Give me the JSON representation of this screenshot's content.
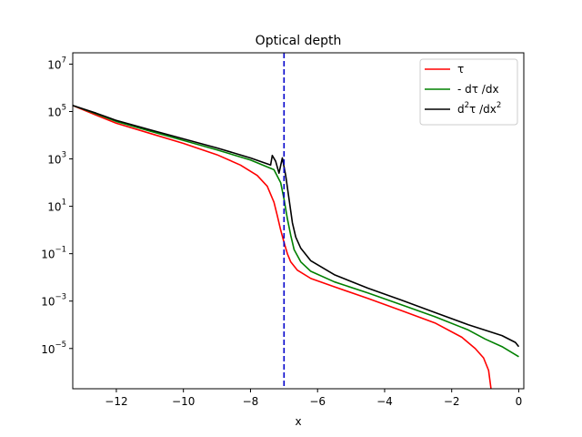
{
  "chart_data": {
    "type": "line",
    "title": "Optical depth",
    "xlabel": "x",
    "ylabel": "",
    "yscale": "log",
    "xlim": [
      -13.3,
      0.15
    ],
    "ylim": [
      2e-07,
      30000000.0
    ],
    "xticks": [
      -12,
      -10,
      -8,
      -6,
      -4,
      -2,
      0
    ],
    "xtick_labels": [
      "−12",
      "−10",
      "−8",
      "−6",
      "−4",
      "−2",
      "0"
    ],
    "yticks": [
      {
        "value": 10000000.0,
        "base": "10",
        "exp": "7"
      },
      {
        "value": 100000.0,
        "base": "10",
        "exp": "5"
      },
      {
        "value": 1000.0,
        "base": "10",
        "exp": "3"
      },
      {
        "value": 10.0,
        "base": "10",
        "exp": "1"
      },
      {
        "value": 0.1,
        "base": "10",
        "exp": "−1"
      },
      {
        "value": 0.001,
        "base": "10",
        "exp": "−3"
      },
      {
        "value": 1e-05,
        "base": "10",
        "exp": "−5"
      }
    ],
    "grid": false,
    "legend_position": "top-right",
    "vline": {
      "x": -7.0,
      "color": "#0000cc",
      "style": "dashed"
    },
    "series": [
      {
        "name": "τ",
        "legend_parts": [
          {
            "text": "τ"
          }
        ],
        "color": "#ff0000",
        "points": [
          [
            -13.3,
            180000.0
          ],
          [
            -12.6,
            70000.0
          ],
          [
            -12,
            32000.0
          ],
          [
            -11,
            12000.0
          ],
          [
            -10,
            4500.0
          ],
          [
            -9,
            1500.0
          ],
          [
            -8.3,
            550.0
          ],
          [
            -7.8,
            200.0
          ],
          [
            -7.5,
            70
          ],
          [
            -7.3,
            15
          ],
          [
            -7.2,
            4
          ],
          [
            -7.1,
            1
          ],
          [
            -7.0,
            0.3
          ],
          [
            -6.9,
            0.1
          ],
          [
            -6.8,
            0.045
          ],
          [
            -6.6,
            0.02
          ],
          [
            -6.2,
            0.009
          ],
          [
            -5.5,
            0.004
          ],
          [
            -4.5,
            0.0013
          ],
          [
            -3.5,
            0.0004
          ],
          [
            -2.5,
            0.00012
          ],
          [
            -1.7,
            3e-05
          ],
          [
            -1.3,
            1e-05
          ],
          [
            -1.05,
            4e-06
          ],
          [
            -0.9,
            1.2e-06
          ],
          [
            -0.8,
            1e-07
          ]
        ]
      },
      {
        "name": "- dτ /dx",
        "legend_parts": [
          {
            "text": "- dτ /dx"
          }
        ],
        "color": "#008000",
        "points": [
          [
            -13.3,
            180000.0
          ],
          [
            -12.6,
            80000.0
          ],
          [
            -12,
            38000.0
          ],
          [
            -11,
            15000.0
          ],
          [
            -10,
            6000.0
          ],
          [
            -9,
            2400.0
          ],
          [
            -8,
            900.0
          ],
          [
            -7.3,
            350.0
          ],
          [
            -7.1,
            100.0
          ],
          [
            -7.0,
            20
          ],
          [
            -6.9,
            3
          ],
          [
            -6.8,
            0.6
          ],
          [
            -6.7,
            0.15
          ],
          [
            -6.5,
            0.045
          ],
          [
            -6.2,
            0.018
          ],
          [
            -5.5,
            0.0065
          ],
          [
            -4.5,
            0.0022
          ],
          [
            -3.5,
            0.0007
          ],
          [
            -2.5,
            0.00022
          ],
          [
            -1.5,
            6e-05
          ],
          [
            -1,
            2.5e-05
          ],
          [
            -0.5,
            1.2e-05
          ],
          [
            0,
            4.5e-06
          ]
        ]
      },
      {
        "name": "d²τ /dx²",
        "legend_parts": [
          {
            "text": "d"
          },
          {
            "text": "2",
            "sup": true
          },
          {
            "text": "τ /dx"
          },
          {
            "text": "2",
            "sup": true
          }
        ],
        "color": "#000000",
        "points": [
          [
            -13.3,
            180000.0
          ],
          [
            -12.6,
            85000.0
          ],
          [
            -12,
            42000.0
          ],
          [
            -11,
            17000.0
          ],
          [
            -10,
            7000.0
          ],
          [
            -9,
            2900.0
          ],
          [
            -8,
            1100.0
          ],
          [
            -7.4,
            550.0
          ],
          [
            -7.35,
            1400.0
          ],
          [
            -7.25,
            800.0
          ],
          [
            -7.15,
            250.0
          ],
          [
            -7.05,
            1100.0
          ],
          [
            -6.95,
            200.0
          ],
          [
            -6.85,
            20
          ],
          [
            -6.75,
            2
          ],
          [
            -6.65,
            0.5
          ],
          [
            -6.5,
            0.17
          ],
          [
            -6.2,
            0.05
          ],
          [
            -5.5,
            0.013
          ],
          [
            -4.5,
            0.0035
          ],
          [
            -3.5,
            0.0011
          ],
          [
            -2.5,
            0.00033
          ],
          [
            -1.5,
            0.0001
          ],
          [
            -0.5,
            3.5e-05
          ],
          [
            -0.1,
            1.8e-05
          ],
          [
            0,
            1.2e-05
          ]
        ]
      }
    ]
  }
}
